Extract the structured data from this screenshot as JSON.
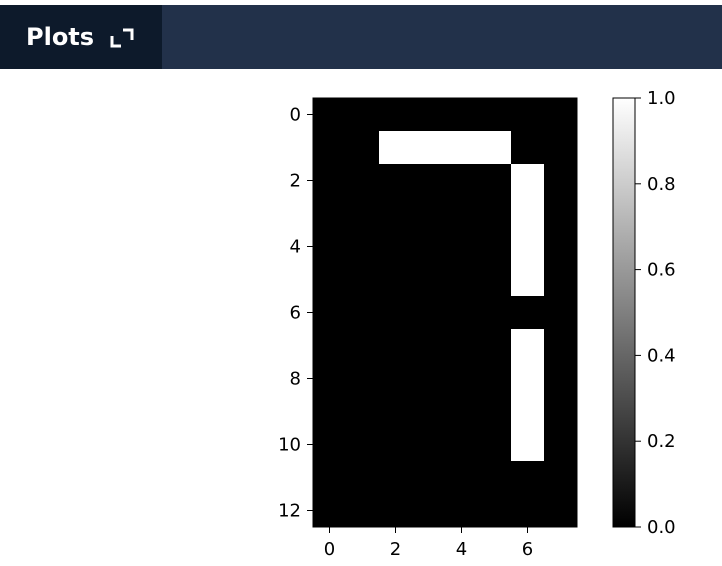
{
  "header": {
    "tab_label": "Plots",
    "background": "#22314a",
    "tab_background": "#0d1a2b",
    "icon": "expand-icon"
  },
  "chart_data": {
    "type": "heatmap",
    "colormap": "gray",
    "title": "",
    "xlabel": "",
    "ylabel": "",
    "rows": 13,
    "cols": 8,
    "x_ticks": [
      0,
      2,
      4,
      6
    ],
    "y_ticks": [
      0,
      2,
      4,
      6,
      8,
      10,
      12
    ],
    "xlim": [
      -0.5,
      7.5
    ],
    "ylim": [
      12.5,
      -0.5
    ],
    "values": [
      [
        0,
        0,
        0,
        0,
        0,
        0,
        0,
        0
      ],
      [
        0,
        0,
        1,
        1,
        1,
        1,
        0,
        0
      ],
      [
        0,
        0,
        0,
        0,
        0,
        0,
        1,
        0
      ],
      [
        0,
        0,
        0,
        0,
        0,
        0,
        1,
        0
      ],
      [
        0,
        0,
        0,
        0,
        0,
        0,
        1,
        0
      ],
      [
        0,
        0,
        0,
        0,
        0,
        0,
        1,
        0
      ],
      [
        0,
        0,
        0,
        0,
        0,
        0,
        0,
        0
      ],
      [
        0,
        0,
        0,
        0,
        0,
        0,
        1,
        0
      ],
      [
        0,
        0,
        0,
        0,
        0,
        0,
        1,
        0
      ],
      [
        0,
        0,
        0,
        0,
        0,
        0,
        1,
        0
      ],
      [
        0,
        0,
        0,
        0,
        0,
        0,
        1,
        0
      ],
      [
        0,
        0,
        0,
        0,
        0,
        0,
        0,
        0
      ],
      [
        0,
        0,
        0,
        0,
        0,
        0,
        0,
        0
      ]
    ],
    "colorbar": {
      "range": [
        0.0,
        1.0
      ],
      "ticks": [
        0.0,
        0.2,
        0.4,
        0.6,
        0.8,
        1.0
      ],
      "tick_labels": [
        "0.0",
        "0.2",
        "0.4",
        "0.6",
        "0.8",
        "1.0"
      ]
    }
  }
}
